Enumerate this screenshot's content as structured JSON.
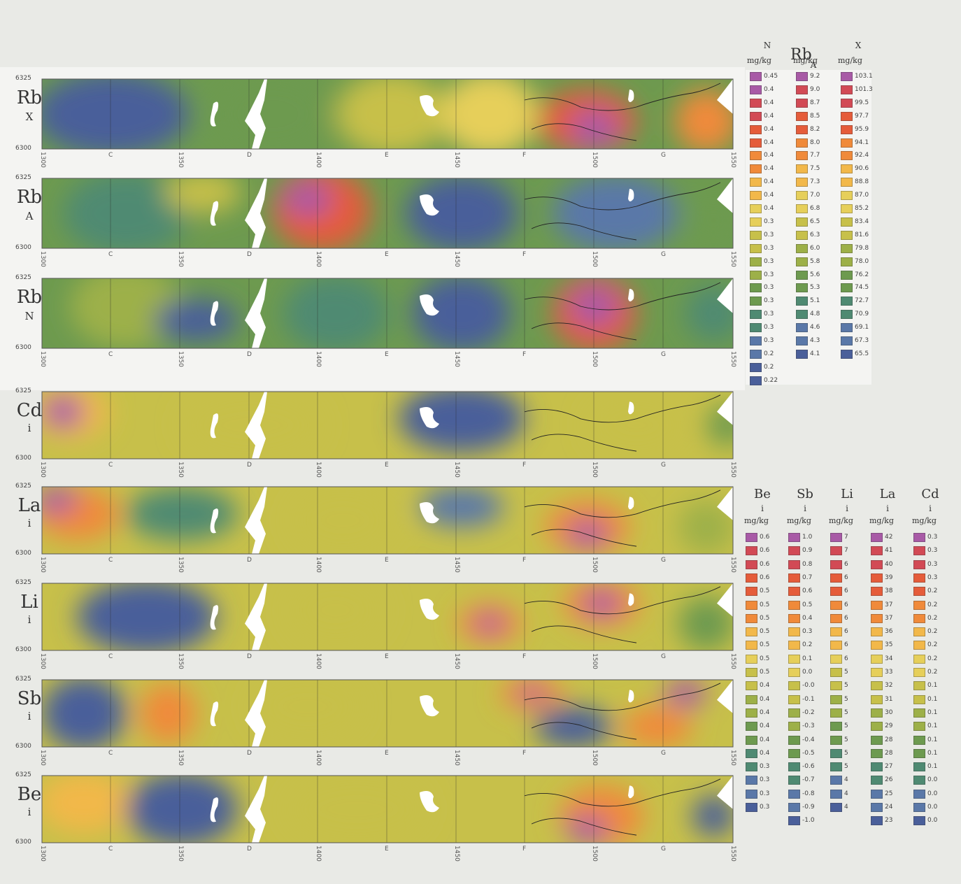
{
  "colors": {
    "ramp": [
      "#4a5f9a",
      "#5a78a8",
      "#4f8a72",
      "#6d9a4f",
      "#9db048",
      "#c7c04a",
      "#e6cf5a",
      "#f2b84a",
      "#f08a3a",
      "#e55c3a",
      "#d24a55",
      "#a85aa6"
    ]
  },
  "axis": {
    "lat_top": "6325",
    "lat_bottom": "6300",
    "ticks": [
      "1300",
      "C",
      "1350",
      "D",
      "1400",
      "E",
      "1450",
      "F",
      "1500",
      "G",
      "1550"
    ]
  },
  "panels": [
    {
      "element": "Rb",
      "sub": "X"
    },
    {
      "element": "Rb",
      "sub": "A"
    },
    {
      "element": "Rb",
      "sub": "N"
    },
    {
      "element": "Cd",
      "sub": "i"
    },
    {
      "element": "La",
      "sub": "i"
    },
    {
      "element": "Li",
      "sub": "i"
    },
    {
      "element": "Sb",
      "sub": "i"
    },
    {
      "element": "Be",
      "sub": "i"
    }
  ],
  "legend_upper": {
    "title": "Rb",
    "columns": [
      {
        "sub": "N",
        "unit": "mg/kg",
        "values": [
          "0.45",
          "0.4",
          "0.4",
          "0.4",
          "0.4",
          "0.4",
          "0.4",
          "0.4",
          "0.4",
          "0.4",
          "0.4",
          "0.3",
          "0.3",
          "0.3",
          "0.3",
          "0.3",
          "0.3",
          "0.3",
          "0.3",
          "0.3",
          "0.3",
          "0.2",
          "0.2",
          "0.22"
        ]
      },
      {
        "sub": "A",
        "unit": "mg/kg",
        "values": [
          "9.2",
          "9.0",
          "8.7",
          "8.5",
          "8.2",
          "8.0",
          "7.7",
          "7.5",
          "7.3",
          "7.0",
          "6.8",
          "6.5",
          "6.3",
          "6.0",
          "5.8",
          "5.6",
          "5.3",
          "5.1",
          "4.8",
          "4.6",
          "4.3",
          "4.1"
        ]
      },
      {
        "sub": "X",
        "unit": "mg/kg",
        "values": [
          "103.1",
          "101.3",
          "99.5",
          "97.7",
          "95.9",
          "94.1",
          "92.4",
          "90.6",
          "88.8",
          "87.0",
          "85.2",
          "83.4",
          "81.6",
          "79.8",
          "78.0",
          "76.2",
          "74.5",
          "72.7",
          "70.9",
          "69.1",
          "67.3",
          "65.5"
        ]
      }
    ]
  },
  "legend_lower": {
    "columns": [
      {
        "title": "Be",
        "sub": "i",
        "unit": "mg/kg",
        "values": [
          "0.6",
          "0.6",
          "0.6",
          "0.6",
          "0.5",
          "0.5",
          "0.5",
          "0.5",
          "0.5",
          "0.5",
          "0.5",
          "0.4",
          "0.4",
          "0.4",
          "0.4",
          "0.4",
          "0.4",
          "0.3",
          "0.3",
          "0.3",
          "0.3"
        ]
      },
      {
        "title": "Sb",
        "sub": "i",
        "unit": "mg/kg",
        "values": [
          "1.0",
          "0.9",
          "0.8",
          "0.7",
          "0.6",
          "0.5",
          "0.4",
          "0.3",
          "0.2",
          "0.1",
          "0.0",
          "-0.0",
          "-0.1",
          "-0.2",
          "-0.3",
          "-0.4",
          "-0.5",
          "-0.6",
          "-0.7",
          "-0.8",
          "-0.9",
          "-1.0"
        ]
      },
      {
        "title": "Li",
        "sub": "i",
        "unit": "mg/kg",
        "values": [
          "7",
          "7",
          "6",
          "6",
          "6",
          "6",
          "6",
          "6",
          "6",
          "6",
          "5",
          "5",
          "5",
          "5",
          "5",
          "5",
          "5",
          "5",
          "4",
          "4",
          "4"
        ]
      },
      {
        "title": "La",
        "sub": "i",
        "unit": "mg/kg",
        "values": [
          "42",
          "41",
          "40",
          "39",
          "38",
          "37",
          "37",
          "36",
          "35",
          "34",
          "33",
          "32",
          "31",
          "30",
          "29",
          "28",
          "28",
          "27",
          "26",
          "25",
          "24",
          "23"
        ]
      },
      {
        "title": "Cd",
        "sub": "i",
        "unit": "mg/kg",
        "values": [
          "0.3",
          "0.3",
          "0.3",
          "0.3",
          "0.2",
          "0.2",
          "0.2",
          "0.2",
          "0.2",
          "0.2",
          "0.2",
          "0.1",
          "0.1",
          "0.1",
          "0.1",
          "0.1",
          "0.1",
          "0.1",
          "0.0",
          "0.0",
          "0.0",
          "0.0"
        ]
      }
    ]
  }
}
